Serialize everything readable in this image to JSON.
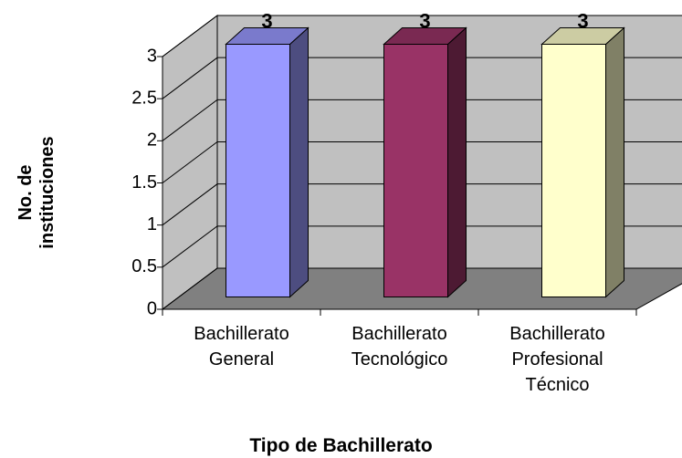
{
  "chart_data": {
    "type": "bar3d",
    "categories": [
      "Bachillerato General",
      "Bachillerato Tecnológico",
      "Bachillerato Profesional Técnico"
    ],
    "values": [
      3,
      3,
      3
    ],
    "colors": [
      "#9999ff",
      "#993366",
      "#ffffcc"
    ],
    "side_colors": [
      "#4d4d80",
      "#4d1a33",
      "#808066"
    ],
    "top_colors": [
      "#7a7acc",
      "#7a2952",
      "#ccccA3"
    ],
    "ylim": [
      0,
      3
    ],
    "yticks": [
      0,
      0.5,
      1,
      1.5,
      2,
      2.5,
      3
    ],
    "grid": true,
    "xlabel": "Tipo de Bachillerato",
    "ylabel": "No. de instituciones"
  }
}
